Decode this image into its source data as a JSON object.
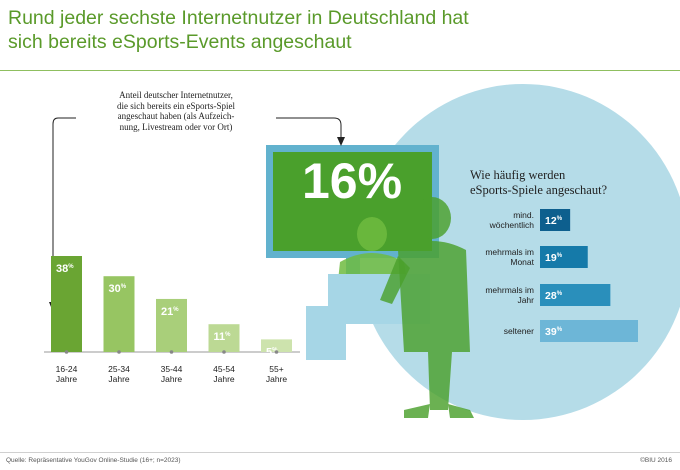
{
  "title": {
    "line1": "Rund jeder sechste Internetnutzer in Deutschland hat",
    "line2": "sich bereits eSports-Events angeschaut"
  },
  "annotation": {
    "line1": "Anteil deutscher Internetnutzer,",
    "line2": "die sich bereits ein eSports-Spiel",
    "line3": "angeschaut haben (als Aufzeich-",
    "line4": "nung, Livestream oder vor Ort)"
  },
  "highlight_value": "16%",
  "frequency_title": {
    "line1": "Wie häufig werden",
    "line2": "eSports-Spiele angeschaut?"
  },
  "source": "Quelle: Repräsentative YouGov Online-Studie (16+; n=2023)",
  "copyright": "©BIU 2016",
  "colors": {
    "title_green": "#5a9a2a",
    "age_bars": [
      "#6aa533",
      "#97c562",
      "#a9cf7a",
      "#bcd994",
      "#cde3ad"
    ],
    "freq_bars": [
      "#0d5f8e",
      "#157aa9",
      "#2a8fbb",
      "#6db6d7"
    ],
    "circle": "#b5dce8",
    "screen_frame": "#62b2ce",
    "screen_fill": "#4aa02c"
  },
  "chart_data": [
    {
      "type": "bar",
      "title": "",
      "xlabel": "",
      "ylabel": "",
      "categories": [
        [
          "16-24",
          "Jahre"
        ],
        [
          "25-34",
          "Jahre"
        ],
        [
          "35-44",
          "Jahre"
        ],
        [
          "45-54",
          "Jahre"
        ],
        [
          "55+",
          "Jahre"
        ]
      ],
      "values": [
        38,
        30,
        21,
        11,
        5
      ],
      "value_labels": [
        "38%",
        "30%",
        "21%",
        "11%",
        "5%"
      ],
      "ylim": [
        0,
        38
      ]
    },
    {
      "type": "bar",
      "orientation": "horizontal",
      "title": "",
      "categories": [
        [
          "mind.",
          "wöchentlich"
        ],
        [
          "mehrmals im",
          "Monat"
        ],
        [
          "mehrmals im",
          "Jahr"
        ],
        [
          "seltener"
        ]
      ],
      "values": [
        12,
        19,
        28,
        39
      ],
      "value_labels": [
        "12%",
        "19%",
        "28%",
        "39%"
      ],
      "xlim": [
        0,
        39
      ]
    }
  ]
}
